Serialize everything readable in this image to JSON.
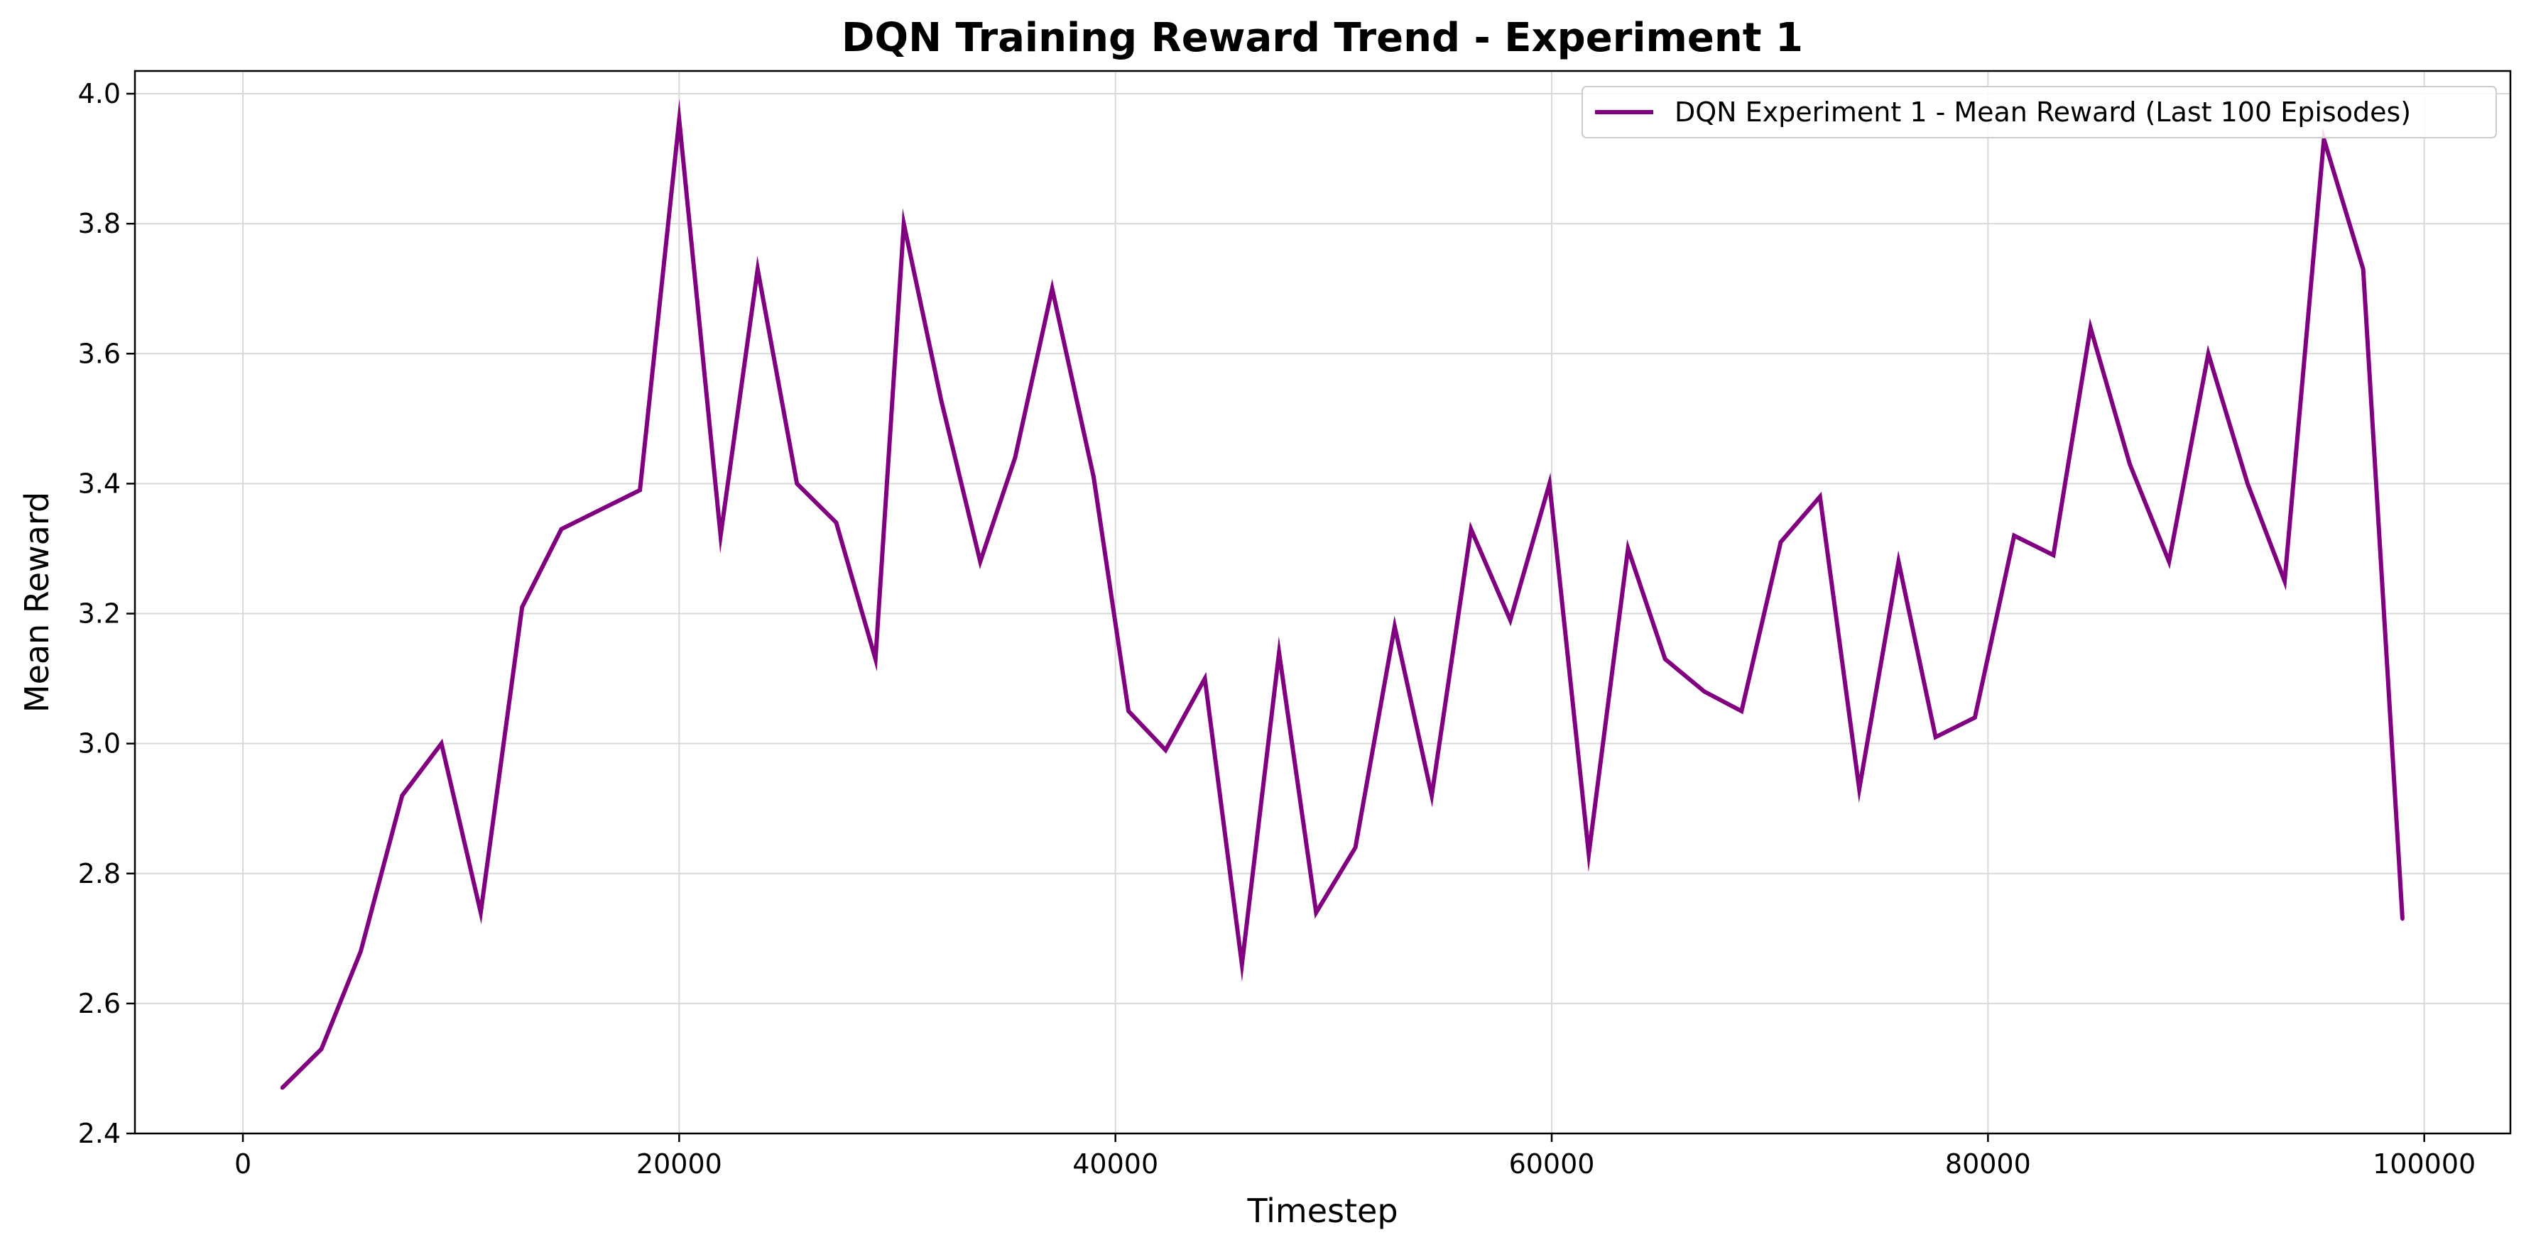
{
  "chart_data": {
    "type": "line",
    "title": "DQN Training Reward Trend - Experiment 1",
    "xlabel": "Timestep",
    "ylabel": "Mean Reward",
    "xlim": [
      -4950,
      103950
    ],
    "ylim": [
      2.4,
      4.035
    ],
    "xticks": [
      0,
      20000,
      40000,
      60000,
      80000,
      100000
    ],
    "yticks": [
      2.4,
      2.6,
      2.8,
      3.0,
      3.2,
      3.4,
      3.6,
      3.8,
      4.0
    ],
    "ytick_labels": [
      "2.4",
      "2.6",
      "2.8",
      "3.0",
      "3.2",
      "3.4",
      "3.6",
      "3.8",
      "4.0"
    ],
    "grid": true,
    "legend_position": "top-right",
    "series": [
      {
        "name": "DQN Experiment 1 - Mean Reward (Last 100 Episodes)",
        "color": "#800080",
        "x": [
          1800,
          3600,
          5400,
          7300,
          9100,
          10900,
          12800,
          14600,
          16400,
          18200,
          20000,
          21900,
          23600,
          25400,
          27200,
          29000,
          30300,
          32000,
          33800,
          35400,
          37100,
          39000,
          40600,
          42300,
          44100,
          45800,
          47500,
          49200,
          51000,
          52800,
          54500,
          56300,
          58100,
          59900,
          61700,
          63500,
          65200,
          67000,
          68700,
          70500,
          72300,
          74100,
          75900,
          77600,
          79400,
          81200,
          83000,
          84700,
          86500,
          88300,
          90100,
          91900,
          93600,
          95400,
          97200,
          99000
        ],
        "y": [
          2.47,
          2.53,
          2.68,
          2.92,
          3.0,
          2.74,
          3.21,
          3.33,
          3.36,
          3.39,
          3.96,
          3.32,
          3.73,
          3.4,
          3.34,
          3.13,
          3.8,
          3.53,
          3.28,
          3.44,
          3.7,
          3.41,
          3.05,
          2.99,
          3.1,
          2.66,
          3.14,
          2.74,
          2.84,
          3.18,
          2.92,
          3.33,
          3.19,
          3.4,
          2.83,
          3.3,
          3.13,
          3.08,
          3.05,
          3.31,
          3.38,
          2.93,
          3.28,
          3.01,
          3.04,
          3.32,
          3.29,
          3.64,
          3.43,
          3.28,
          3.6,
          3.4,
          3.25,
          3.93,
          3.73,
          2.73
        ]
      }
    ]
  }
}
